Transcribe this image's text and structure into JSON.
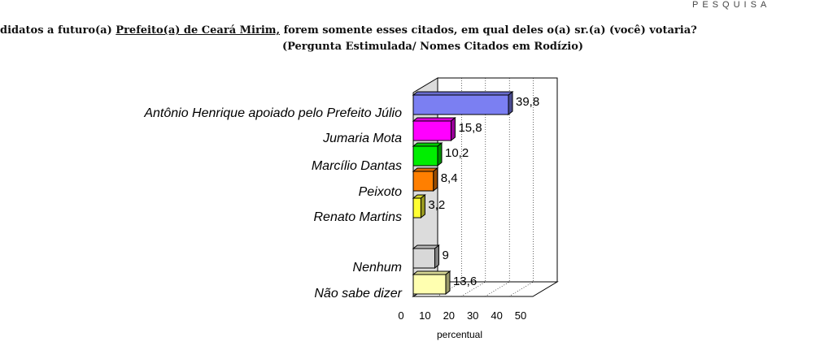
{
  "header": {
    "brand": "PESQUISA"
  },
  "question": {
    "prefix": "didatos a futuro(a) ",
    "underlined": "Prefeito(a) de Ceará Mirim,",
    "suffix": " forem somente esses citados, em qual deles o(a) sr.(a) (você) votaria?",
    "subtitle": "(Pergunta Estimulada/ Nomes Citados em Rodízio)"
  },
  "chart_data": {
    "type": "bar",
    "orientation": "horizontal",
    "style": "3d",
    "categories": [
      "Antônio Henrique apoiado pelo Prefeito Júlio",
      "Jumaria Mota",
      "Marcílio Dantas",
      "Peixoto",
      "Renato Martins",
      "Nenhum",
      "Não sabe dizer"
    ],
    "values": [
      39.8,
      15.8,
      10.2,
      8.4,
      3.2,
      9,
      13.6
    ],
    "value_labels": [
      "39,8",
      "15,8",
      "10,2",
      "8,4",
      "3,2",
      "9",
      "13,6"
    ],
    "colors": [
      "#7b7ff2",
      "#ff00ff",
      "#00ee00",
      "#ff7f00",
      "#ffff33",
      "#d8d8d8",
      "#ffffb0"
    ],
    "xlabel": "percentual",
    "xlim": [
      0,
      50
    ],
    "xticks": [
      "0",
      "10",
      "20",
      "30",
      "40",
      "50"
    ],
    "grid": true
  }
}
